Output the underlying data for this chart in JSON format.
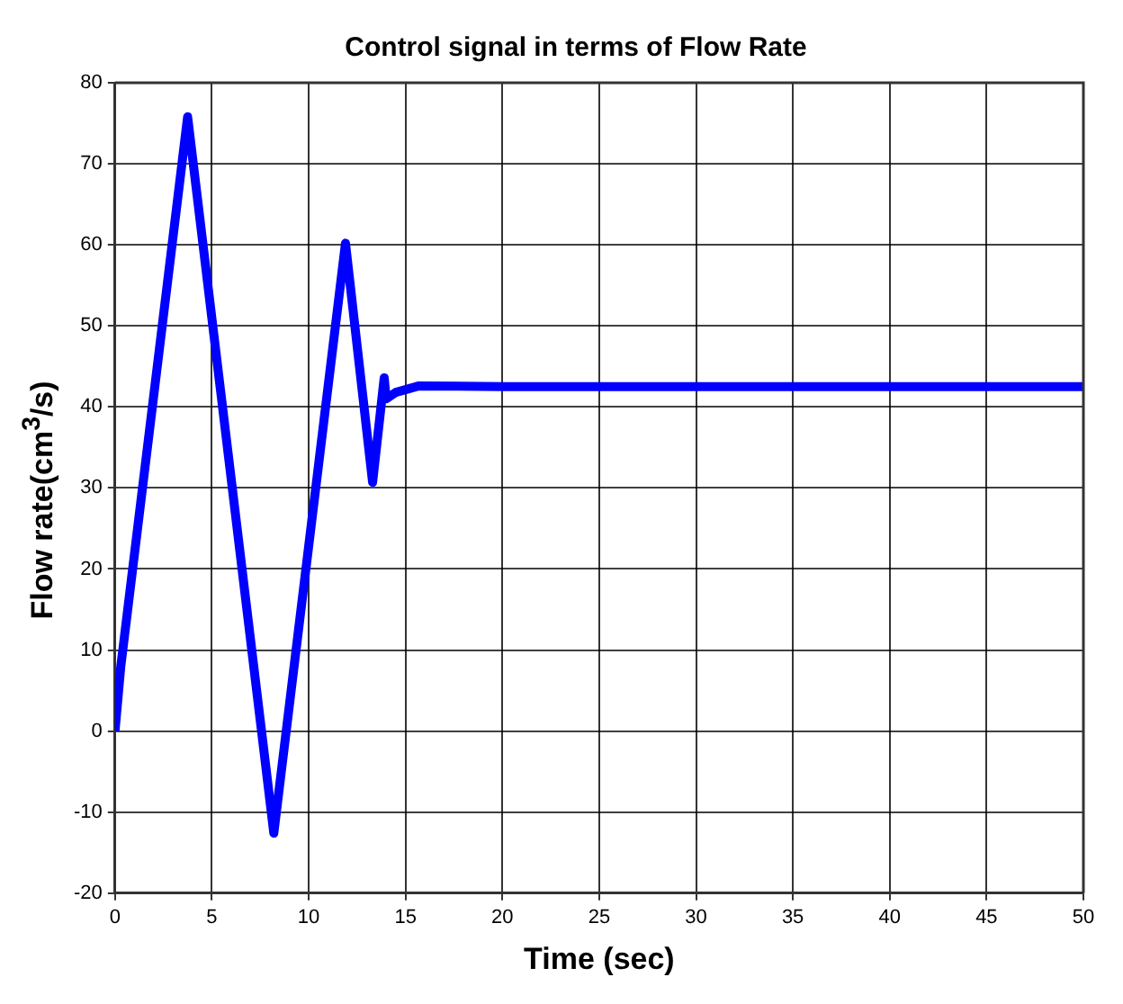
{
  "chart_data": {
    "type": "line",
    "title": "Control signal in terms of Flow Rate",
    "xlabel": "Time (sec)",
    "ylabel": "Flow rate(cm$^{3}$/s)",
    "x": [
      0,
      0.3,
      3.75,
      8.2,
      11.9,
      13.3,
      13.9,
      14.0,
      14.5,
      15.7,
      20,
      30,
      40,
      50
    ],
    "series": [
      {
        "color": "#0000ff",
        "values": [
          0,
          8,
          75.8,
          -12.6,
          60.2,
          30.7,
          43.6,
          41,
          41.8,
          42.6,
          42.5,
          42.5,
          42.5,
          42.5
        ]
      }
    ],
    "xlim": [
      0,
      50
    ],
    "xticks": [
      0,
      5,
      10,
      15,
      20,
      25,
      30,
      35,
      40,
      45,
      50
    ],
    "ylim": [
      -20,
      80
    ],
    "yticks": [
      -20,
      -10,
      0,
      10,
      20,
      30,
      40,
      50,
      60,
      70,
      80
    ],
    "grid": true,
    "line_style": "solid",
    "marker": "none",
    "legend": false
  }
}
